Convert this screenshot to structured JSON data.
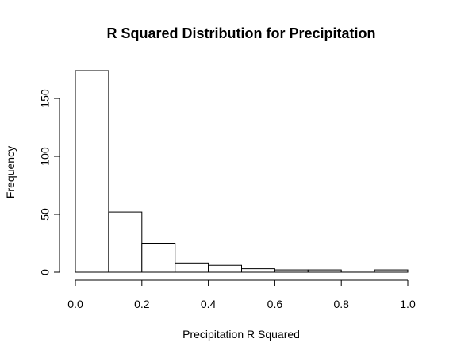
{
  "chart_data": {
    "type": "bar",
    "title": "R Squared Distribution for Precipitation",
    "xlabel": "Precipitation R Squared",
    "ylabel": "Frequency",
    "bins": [
      {
        "start": 0.0,
        "end": 0.1,
        "value": 174
      },
      {
        "start": 0.1,
        "end": 0.2,
        "value": 52
      },
      {
        "start": 0.2,
        "end": 0.3,
        "value": 25
      },
      {
        "start": 0.3,
        "end": 0.4,
        "value": 8
      },
      {
        "start": 0.4,
        "end": 0.5,
        "value": 6
      },
      {
        "start": 0.5,
        "end": 0.6,
        "value": 3
      },
      {
        "start": 0.6,
        "end": 0.7,
        "value": 2
      },
      {
        "start": 0.7,
        "end": 0.8,
        "value": 2
      },
      {
        "start": 0.8,
        "end": 0.9,
        "value": 1
      },
      {
        "start": 0.9,
        "end": 1.0,
        "value": 2
      }
    ],
    "xlim": [
      0.0,
      1.0
    ],
    "ylim": [
      0,
      174
    ],
    "x_ticks": [
      0.0,
      0.2,
      0.4,
      0.6,
      0.8,
      1.0
    ],
    "x_tick_labels": [
      "0.0",
      "0.2",
      "0.4",
      "0.6",
      "0.8",
      "1.0"
    ],
    "y_ticks": [
      0,
      50,
      100,
      150
    ],
    "y_tick_labels": [
      "0",
      "50",
      "100",
      "150"
    ],
    "grid": false,
    "colors": {
      "background": "#ffffff",
      "bar_fill": "#ffffff",
      "bar_stroke": "#000000",
      "text": "#000000",
      "axis": "#000000"
    }
  }
}
